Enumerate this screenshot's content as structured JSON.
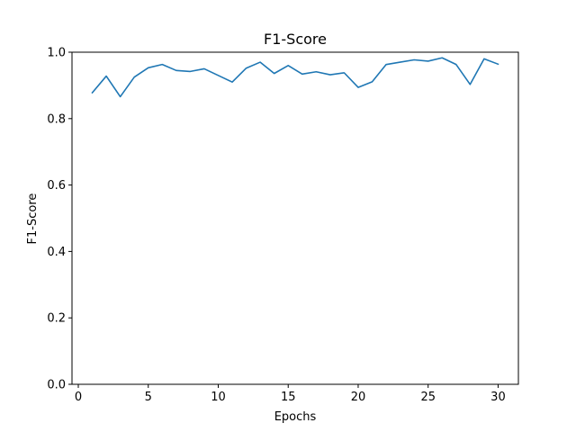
{
  "chart_data": {
    "type": "line",
    "title": "F1-Score",
    "xlabel": "Epochs",
    "ylabel": "F1-Score",
    "xlim": [
      -0.45,
      31.45
    ],
    "ylim": [
      0.0,
      1.0
    ],
    "xticks": [
      0,
      5,
      10,
      15,
      20,
      25,
      30
    ],
    "xtick_labels": [
      "0",
      "5",
      "10",
      "15",
      "20",
      "25",
      "30"
    ],
    "yticks": [
      0.0,
      0.2,
      0.4,
      0.6,
      0.8,
      1.0
    ],
    "ytick_labels": [
      "0.0",
      "0.2",
      "0.4",
      "0.6",
      "0.8",
      "1.0"
    ],
    "grid": false,
    "color": "#1f77b4",
    "x": [
      1,
      2,
      3,
      4,
      5,
      6,
      7,
      8,
      9,
      10,
      11,
      12,
      13,
      14,
      15,
      16,
      17,
      18,
      19,
      20,
      21,
      22,
      23,
      24,
      25,
      26,
      27,
      28,
      29,
      30
    ],
    "series": [
      {
        "values": [
          0.878,
          0.928,
          0.866,
          0.925,
          0.953,
          0.963,
          0.945,
          0.942,
          0.95,
          0.93,
          0.91,
          0.952,
          0.97,
          0.936,
          0.96,
          0.934,
          0.941,
          0.932,
          0.938,
          0.894,
          0.911,
          0.963,
          0.97,
          0.977,
          0.973,
          0.983,
          0.963,
          0.903,
          0.98,
          0.964
        ]
      }
    ]
  }
}
